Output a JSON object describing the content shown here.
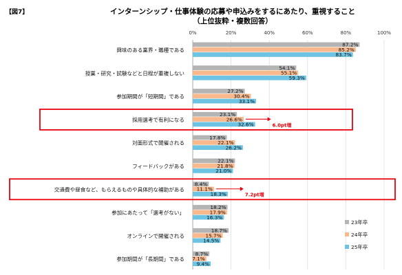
{
  "figure_label": "【図7】",
  "title_line1": "インターンシップ・仕事体験の応募や申込みをするにあたり、重視すること",
  "title_line2": "（上位抜粋・複数回答）",
  "colors": {
    "s23": "#b4b4b4",
    "s24": "#f9b98c",
    "s25": "#6cc3e2",
    "highlight": "#e8000b"
  },
  "chart_data": {
    "type": "bar",
    "orientation": "horizontal",
    "xlim": [
      0,
      100
    ],
    "x_ticks": [
      "0%",
      "20%",
      "40%",
      "60%",
      "80%",
      "100%"
    ],
    "categories": [
      "興味のある業界・職種である",
      "授業・研究・試験などと日程が重複しない",
      "参加期間が「短期間」である",
      "採用選考で有利になる",
      "対面形式で開催される",
      "フィードバックがある",
      "交通費や昼食など、もらえるものや具体的な補助がある",
      "参加にあたって「選考がない」",
      "オンラインで開催される",
      "参加期間が「長期間」である"
    ],
    "series": [
      {
        "name": "23年卒",
        "values": [
          87.2,
          54.1,
          27.2,
          23.1,
          17.8,
          22.1,
          8.4,
          18.2,
          18.7,
          8.7
        ],
        "labels": [
          "87.2%",
          "54.1%",
          "27.2%",
          "23.1%",
          "17.8%",
          "22.1%",
          "8.4%",
          "18.2%",
          "18.7%",
          "8.7%"
        ]
      },
      {
        "name": "24年卒",
        "values": [
          85.2,
          55.1,
          30.4,
          26.6,
          22.1,
          21.8,
          11.1,
          17.9,
          15.7,
          7.1
        ],
        "labels": [
          "85.2%",
          "55.1%",
          "30.4%",
          "26.6%",
          "22.1%",
          "21.8%",
          "11.1%",
          "17.9%",
          "15.7%",
          "7.1%"
        ]
      },
      {
        "name": "25年卒",
        "values": [
          83.7,
          59.3,
          33.1,
          32.6,
          26.2,
          21.0,
          18.3,
          16.3,
          14.5,
          9.4
        ],
        "labels": [
          "83.7%",
          "59.3%",
          "33.1%",
          "32.6%",
          "26.2%",
          "21.0%",
          "18.3%",
          "16.3%",
          "14.5%",
          "9.4%"
        ]
      }
    ],
    "annotations": [
      {
        "category_index": 3,
        "text": "6.0pt増"
      },
      {
        "category_index": 6,
        "text": "7.2pt増"
      }
    ],
    "legend_position": "bottom-right",
    "grid": true
  }
}
